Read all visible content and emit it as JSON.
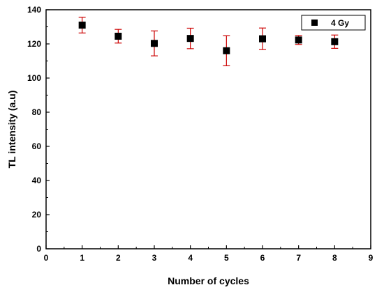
{
  "chart_data": {
    "type": "scatter",
    "title": "",
    "xlabel": "Number of cycles",
    "ylabel": "TL intensity (a.u)",
    "xlim": [
      0,
      9
    ],
    "ylim": [
      0,
      140
    ],
    "x_ticks": [
      0,
      1,
      2,
      3,
      4,
      5,
      6,
      7,
      8,
      9
    ],
    "y_ticks": [
      0,
      20,
      40,
      60,
      80,
      100,
      120,
      140
    ],
    "grid": false,
    "legend_position": "top-right",
    "series": [
      {
        "name": "4 Gy",
        "marker": "square",
        "color": "#000000",
        "error_color": "#cc0000",
        "x": [
          1,
          2,
          3,
          4,
          5,
          6,
          7,
          8
        ],
        "y": [
          131,
          124.5,
          120.3,
          123.2,
          116,
          123,
          122.3,
          121.3
        ],
        "error": [
          4.6,
          4,
          7.3,
          6,
          8.8,
          6.3,
          2.6,
          3.9
        ]
      }
    ]
  }
}
